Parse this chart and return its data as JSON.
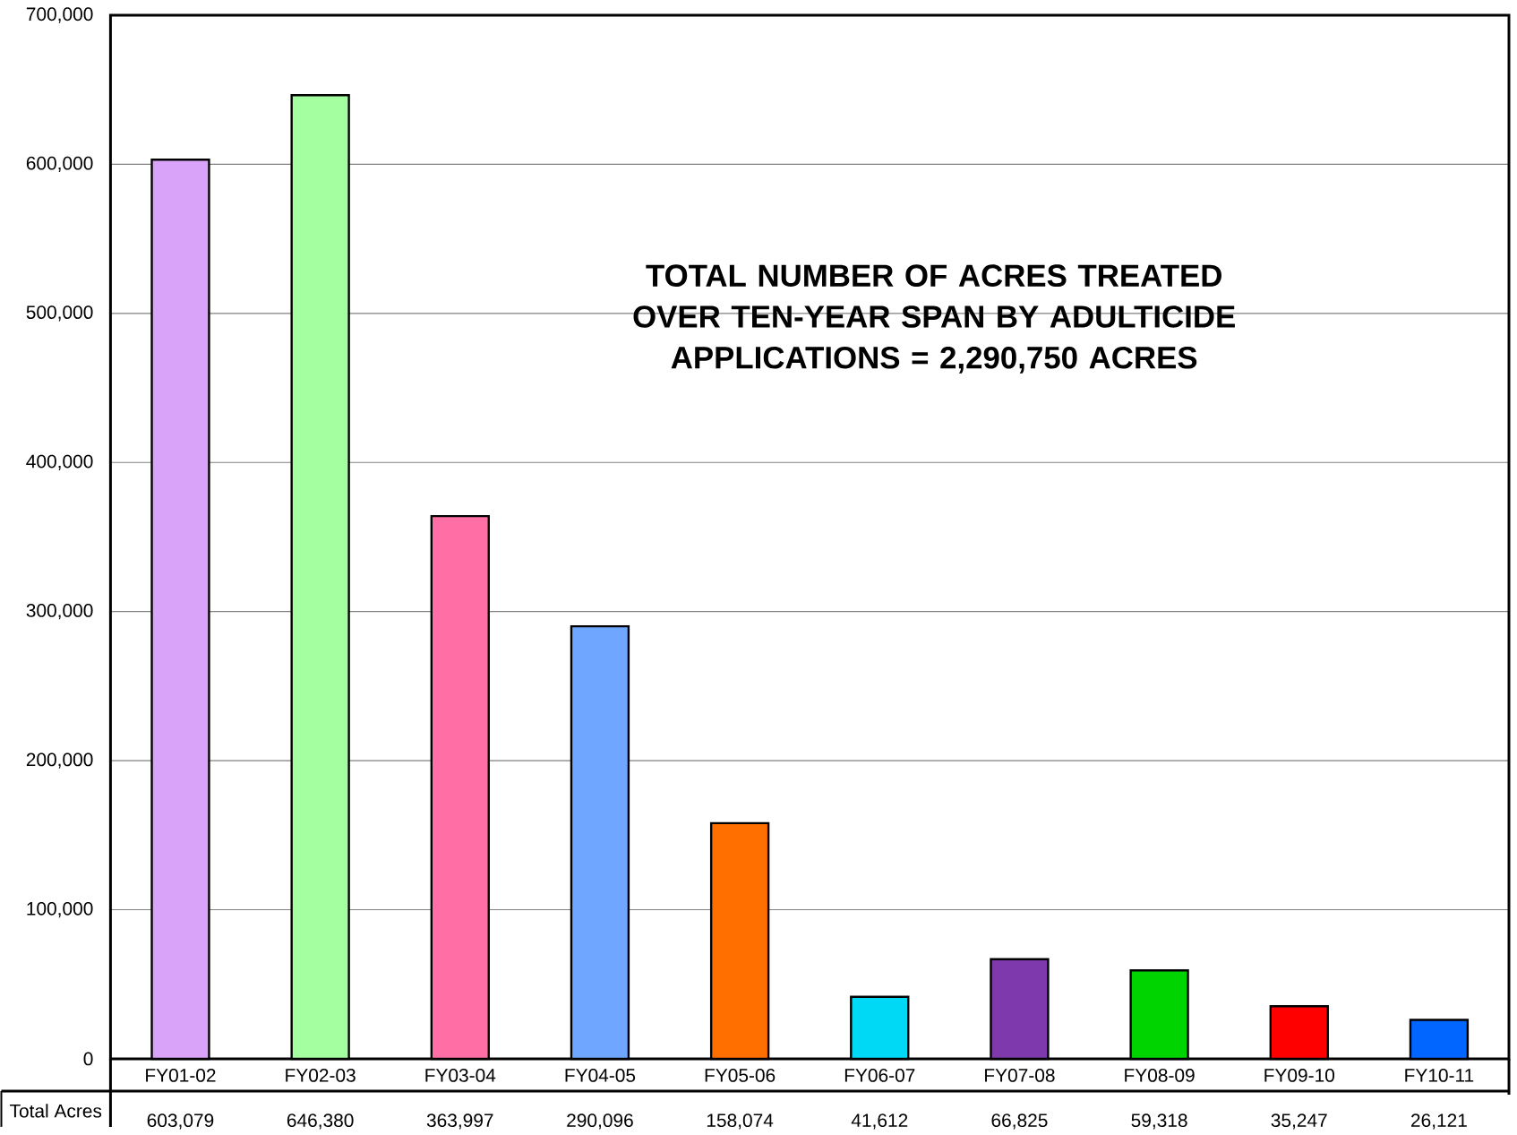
{
  "chart_data": {
    "type": "bar",
    "title": "TOTAL NUMBER OF ACRES TREATED OVER TEN-YEAR SPAN BY ADULTICIDE APPLICATIONS = 2,290,750 ACRES",
    "categories": [
      "FY01-02",
      "FY02-03",
      "FY03-04",
      "FY04-05",
      "FY05-06",
      "FY06-07",
      "FY07-08",
      "FY08-09",
      "FY09-10",
      "FY10-11"
    ],
    "series": [
      {
        "name": "Total Acres",
        "values": [
          603079,
          646380,
          363997,
          290096,
          158074,
          41612,
          66825,
          59318,
          35247,
          26121
        ],
        "value_labels": [
          "603,079",
          "646,380",
          "363,997",
          "290,096",
          "158,074",
          "41,612",
          "66,825",
          "59,318",
          "35,247",
          "26,121"
        ],
        "colors": [
          "#d9a3fa",
          "#a3ff9f",
          "#ff6fa6",
          "#6fa6ff",
          "#ff6f00",
          "#00d9f5",
          "#7e3aad",
          "#00d400",
          "#ff0000",
          "#0066ff"
        ]
      }
    ],
    "ylim": [
      0,
      700000
    ],
    "yticks": [
      0,
      {
        "value": 100000,
        "label": "100,000"
      },
      {
        "value": 200000,
        "label": "200,000"
      },
      {
        "value": 300000,
        "label": "300,000"
      },
      {
        "value": 400000,
        "label": "400,000"
      },
      {
        "value": 500000,
        "label": "500,000"
      },
      {
        "value": 600000,
        "label": "600,000"
      },
      {
        "value": 700000,
        "label": "700,000"
      }
    ],
    "grid": "y"
  }
}
